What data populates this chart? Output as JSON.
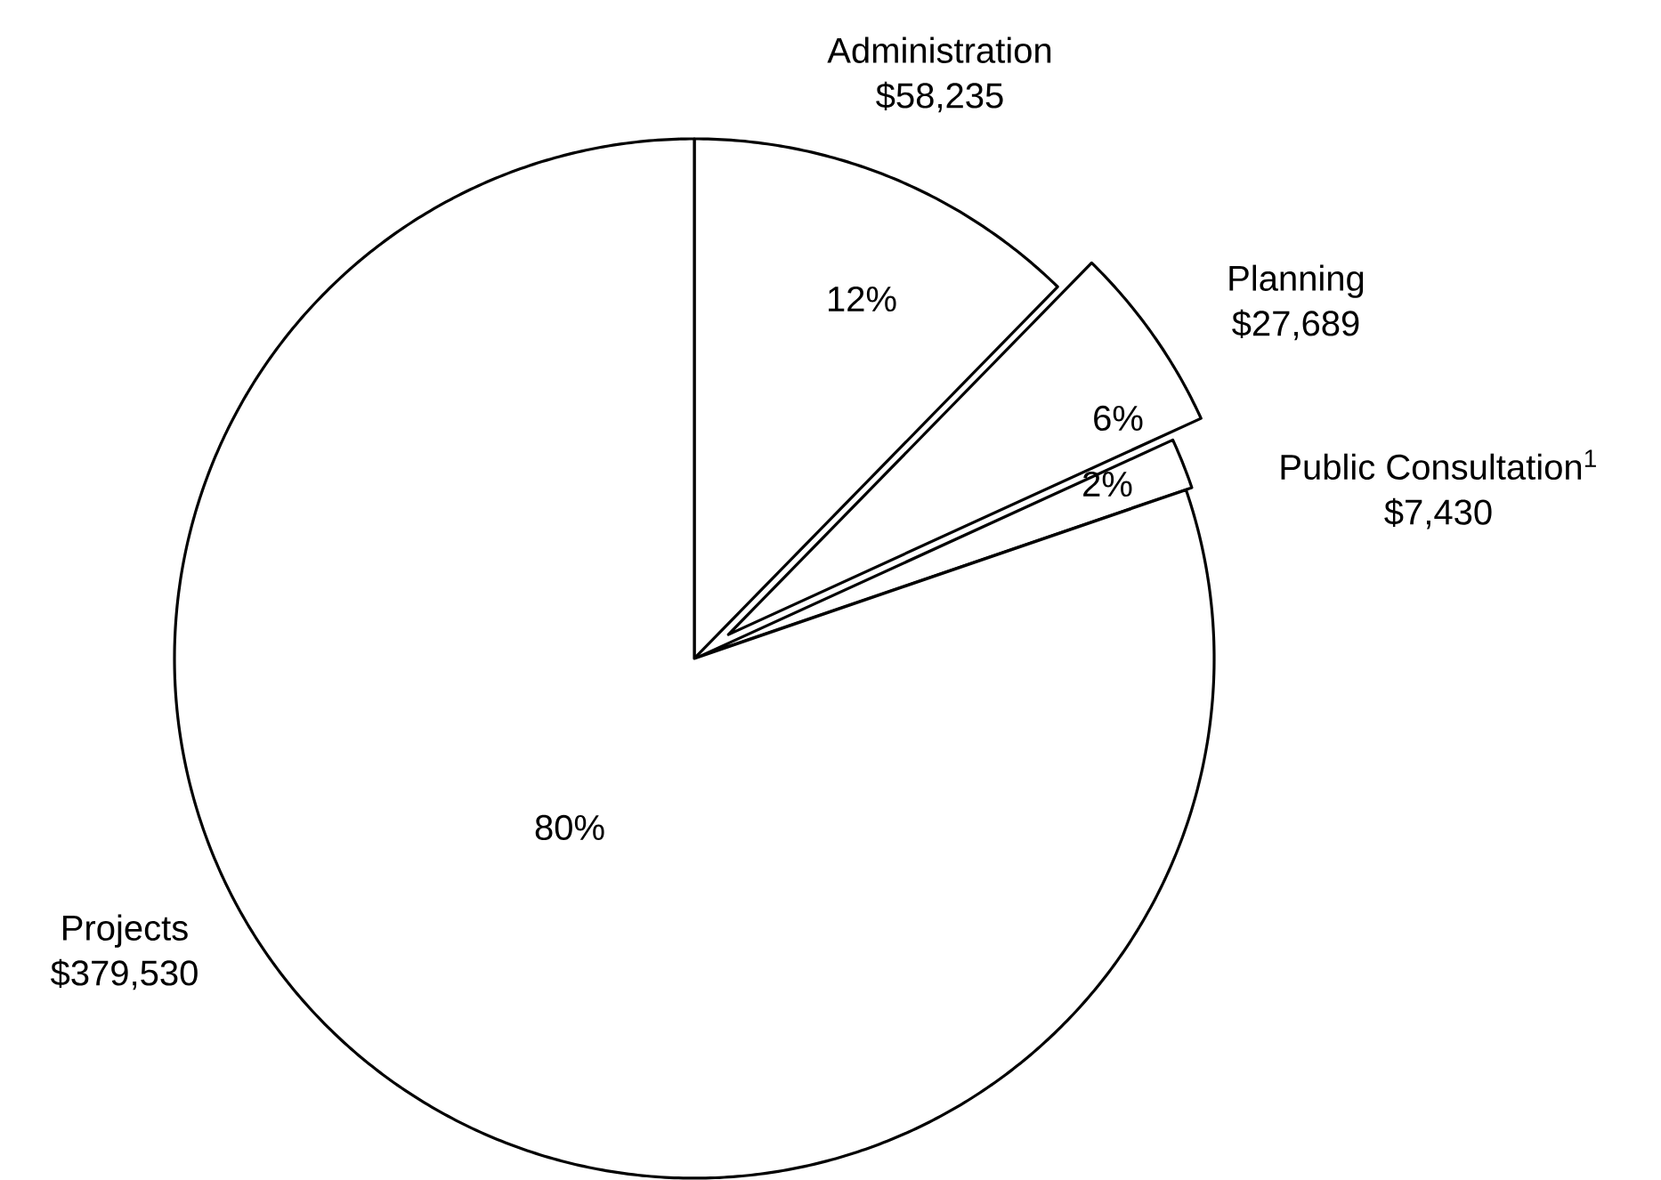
{
  "chart_data": {
    "type": "pie",
    "categories": [
      "Administration",
      "Planning",
      "Public Consultation$^{1}$",
      "Projects"
    ],
    "values": [
      58235,
      27689,
      7430,
      379530
    ],
    "value_labels": [
      "$58,235",
      "$27,689",
      "$7,430",
      "$379,530"
    ],
    "colors": [
      "#ffffff",
      "#ffffff",
      "#ffffff",
      "#ffffff"
    ],
    "annotations": [
      "12%",
      "6%",
      "2%",
      "80%"
    ]
  }
}
